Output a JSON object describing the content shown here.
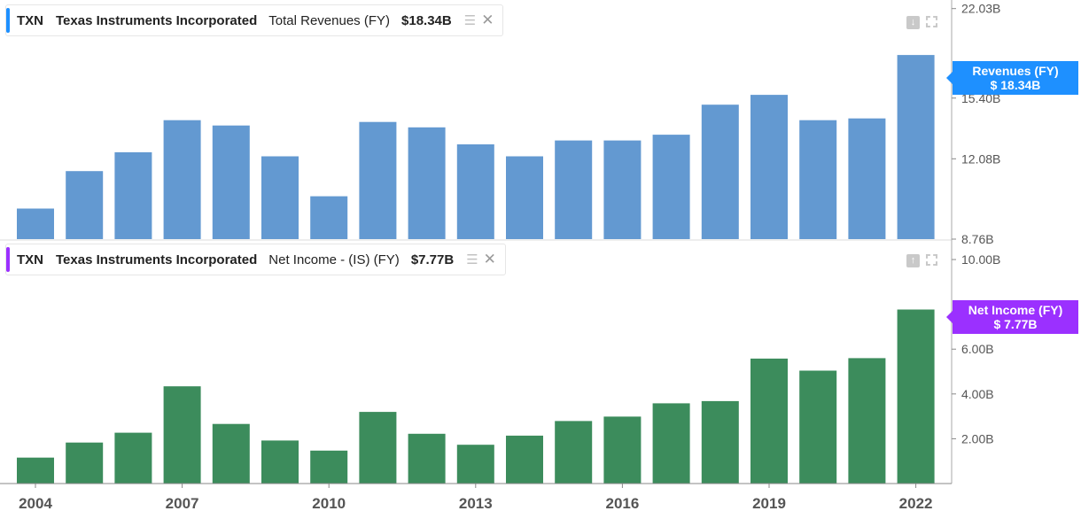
{
  "colors": {
    "revenue_bar": "#6399d1",
    "revenue_accent": "#1e90ff",
    "income_bar": "#3c8c5c",
    "income_accent": "#9b30ff"
  },
  "panes": [
    {
      "ticker": "TXN",
      "company": "Texas Instruments Incorporated",
      "metric": "Total Revenues (FY)",
      "value": "$18.34B",
      "tag_title": "Revenues (FY)",
      "tag_value": "$ 18.34B",
      "collapse_icon": "arrow-down-icon"
    },
    {
      "ticker": "TXN",
      "company": "Texas Instruments Incorporated",
      "metric": "Net Income - (IS) (FY)",
      "value": "$7.77B",
      "tag_title": "Net Income (FY)",
      "tag_value": "$ 7.77B",
      "collapse_icon": "arrow-up-icon"
    }
  ],
  "chart_data": [
    {
      "type": "bar",
      "x": [
        2004,
        2005,
        2006,
        2007,
        2008,
        2009,
        2010,
        2011,
        2012,
        2013,
        2014,
        2015,
        2016,
        2017,
        2018,
        2019,
        2020,
        2021,
        2022
      ],
      "values": [
        9.9,
        11.5,
        12.4,
        14.1,
        13.8,
        12.2,
        10.4,
        14.0,
        13.7,
        12.8,
        12.2,
        13.0,
        13.0,
        13.3,
        15.0,
        15.6,
        14.1,
        14.2,
        18.3
      ],
      "yticks": [
        "8.76B",
        "12.08B",
        "15.40B",
        "22.03B"
      ],
      "ytick_values": [
        8.76,
        12.08,
        15.4,
        22.03
      ],
      "ylim": [
        8.76,
        22.8
      ],
      "y_scale": "log",
      "last_value_label": "$ 18.34B"
    },
    {
      "type": "bar",
      "x": [
        2004,
        2005,
        2006,
        2007,
        2008,
        2009,
        2010,
        2011,
        2012,
        2013,
        2014,
        2015,
        2016,
        2017,
        2018,
        2019,
        2020,
        2021,
        2022
      ],
      "values": [
        1.16,
        1.83,
        2.27,
        4.34,
        2.66,
        1.92,
        1.47,
        3.2,
        2.22,
        1.73,
        2.14,
        2.79,
        2.99,
        3.58,
        3.68,
        5.58,
        5.04,
        5.6,
        7.77
      ],
      "yticks": [
        "2.00B",
        "4.00B",
        "6.00B",
        "10.00B"
      ],
      "ytick_values": [
        2,
        4,
        6,
        10
      ],
      "ylim": [
        0,
        10.2
      ],
      "y_scale": "linear",
      "last_value_label": "$ 7.77B"
    }
  ],
  "x_axis": {
    "labels": [
      "2004",
      "2007",
      "2010",
      "2013",
      "2016",
      "2019",
      "2022"
    ],
    "label_years": [
      2004,
      2007,
      2010,
      2013,
      2016,
      2019,
      2022
    ]
  }
}
